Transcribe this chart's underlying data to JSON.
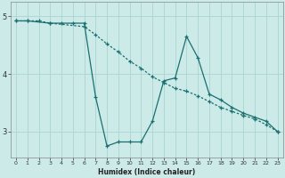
{
  "xlabel": "Humidex (Indice chaleur)",
  "bg_color": "#cceae8",
  "line_color": "#1a7070",
  "grid_color": "#aad4d0",
  "xlim": [
    -0.5,
    23.5
  ],
  "ylim": [
    2.55,
    5.25
  ],
  "yticks": [
    3,
    4,
    5
  ],
  "xticks": [
    0,
    1,
    2,
    3,
    4,
    5,
    6,
    7,
    8,
    9,
    10,
    11,
    12,
    13,
    14,
    15,
    16,
    17,
    18,
    19,
    20,
    21,
    22,
    23
  ],
  "line1_x": [
    0,
    1,
    3,
    4,
    5,
    6,
    7,
    8,
    9,
    10,
    11,
    12,
    13,
    14,
    15,
    16,
    17,
    18,
    19,
    20,
    21,
    22,
    23
  ],
  "line1_y": [
    4.92,
    4.92,
    4.88,
    4.88,
    4.88,
    4.88,
    3.6,
    2.75,
    2.82,
    2.82,
    2.82,
    3.18,
    3.88,
    3.93,
    4.65,
    4.28,
    3.65,
    3.55,
    3.42,
    3.32,
    3.25,
    3.18,
    3.0
  ],
  "line2_x": [
    0,
    1,
    2,
    3,
    6,
    7,
    8,
    9,
    10,
    11,
    12,
    13,
    14,
    15,
    16,
    17,
    18,
    19,
    20,
    21,
    22,
    23
  ],
  "line2_y": [
    4.92,
    4.92,
    4.92,
    4.88,
    4.82,
    4.68,
    4.52,
    4.38,
    4.22,
    4.1,
    3.95,
    3.85,
    3.75,
    3.7,
    3.62,
    3.52,
    3.42,
    3.35,
    3.28,
    3.22,
    3.12,
    3.0
  ]
}
